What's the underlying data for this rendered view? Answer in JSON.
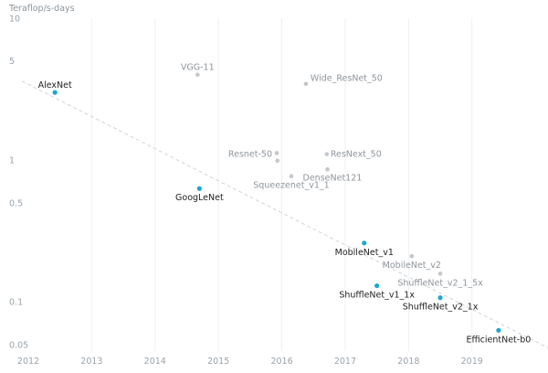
{
  "chart_data": {
    "type": "scatter",
    "title": "",
    "ylabel": "Teraflop/s-days",
    "xlabel": "",
    "y_scale": "log",
    "xlim": [
      2012,
      2020.2
    ],
    "ylim": [
      0.045,
      10
    ],
    "x_ticks": [
      "2012",
      "2013",
      "2014",
      "2015",
      "2016",
      "2017",
      "2018",
      "2019"
    ],
    "y_ticks": [
      {
        "value": 10,
        "label": "10"
      },
      {
        "value": 5,
        "label": "5"
      },
      {
        "value": 1,
        "label": "1"
      },
      {
        "value": 0.5,
        "label": "0.5"
      },
      {
        "value": 0.1,
        "label": "0.1"
      },
      {
        "value": 0.05,
        "label": "0.05"
      }
    ],
    "grid": "vertical",
    "highlight_color": "#1aa7d0",
    "other_color": "#c4c8cc",
    "trend_line": {
      "color": "#d4d8dc",
      "from": {
        "x": 2011.9,
        "y": 3.6
      },
      "to": {
        "x": 2020.3,
        "y": 0.045
      }
    },
    "points": [
      {
        "name": "AlexNet",
        "x": 2012.42,
        "y": 3.0,
        "highlight": true,
        "label_anchor": "middle",
        "dx": 0,
        "dy": -5
      },
      {
        "name": "VGG-11",
        "x": 2014.67,
        "y": 4.0,
        "highlight": false,
        "label_anchor": "middle",
        "dx": 0,
        "dy": -5
      },
      {
        "name": "Wide_ResNet_50",
        "x": 2016.38,
        "y": 3.45,
        "highlight": false,
        "label_anchor": "start",
        "dx": 5,
        "dy": -3
      },
      {
        "name": "Resnet-50",
        "x": 2015.92,
        "y": 1.12,
        "highlight": false,
        "label_anchor": "end",
        "dx": -5,
        "dy": 4
      },
      {
        "name": "ResNext_50",
        "x": 2016.71,
        "y": 1.1,
        "highlight": false,
        "label_anchor": "start",
        "dx": 4,
        "dy": 3
      },
      {
        "name": "",
        "x": 2015.93,
        "y": 0.99,
        "highlight": false,
        "label_anchor": "start",
        "dx": 0,
        "dy": 0
      },
      {
        "name": "DenseNet121",
        "x": 2016.72,
        "y": 0.86,
        "highlight": false,
        "label_anchor": "start",
        "dx": -27,
        "dy": 12
      },
      {
        "name": "Squeezenet_v1_1",
        "x": 2016.15,
        "y": 0.77,
        "highlight": false,
        "label_anchor": "middle",
        "dx": 0,
        "dy": 13
      },
      {
        "name": "GoogLeNet",
        "x": 2014.7,
        "y": 0.63,
        "highlight": true,
        "label_anchor": "middle",
        "dx": 0,
        "dy": 13
      },
      {
        "name": "MobileNet_v1",
        "x": 2017.3,
        "y": 0.26,
        "highlight": true,
        "label_anchor": "middle",
        "dx": 0,
        "dy": 13
      },
      {
        "name": "MobileNet_v2",
        "x": 2018.05,
        "y": 0.21,
        "highlight": false,
        "label_anchor": "middle",
        "dx": 0,
        "dy": 13
      },
      {
        "name": "ShuffleNet_v2_1_5x",
        "x": 2018.5,
        "y": 0.158,
        "highlight": false,
        "label_anchor": "middle",
        "dx": 0,
        "dy": 13
      },
      {
        "name": "ShuffleNet_v1_1x",
        "x": 2017.5,
        "y": 0.13,
        "highlight": true,
        "label_anchor": "middle",
        "dx": 0,
        "dy": 13
      },
      {
        "name": "ShuffleNet_v2_1x",
        "x": 2018.5,
        "y": 0.107,
        "highlight": true,
        "label_anchor": "middle",
        "dx": 0,
        "dy": 13
      },
      {
        "name": "EfficientNet-b0",
        "x": 2019.42,
        "y": 0.063,
        "highlight": true,
        "label_anchor": "middle",
        "dx": 0,
        "dy": 13
      }
    ]
  }
}
